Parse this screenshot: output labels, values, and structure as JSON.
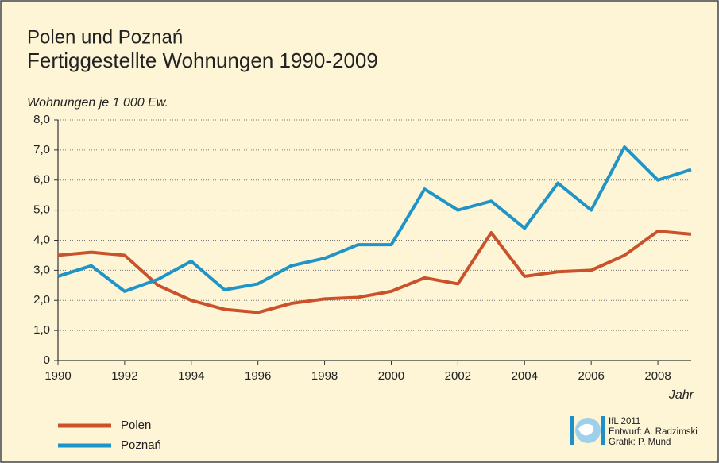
{
  "chart_data": {
    "type": "line",
    "subtitle": "Polen und Poznań",
    "title": "Fertiggestellte Wohnungen 1990-2009",
    "y_label": "Wohnungen je 1 000 Ew.",
    "x_label": "Jahr",
    "x": [
      1990,
      1991,
      1992,
      1993,
      1994,
      1995,
      1996,
      1997,
      1998,
      1999,
      2000,
      2001,
      2002,
      2003,
      2004,
      2005,
      2006,
      2007,
      2008,
      2009
    ],
    "series": [
      {
        "name": "Polen",
        "color": "#c9522b",
        "values": [
          3.5,
          3.6,
          3.5,
          2.5,
          2.0,
          1.7,
          1.6,
          1.9,
          2.05,
          2.1,
          2.3,
          2.75,
          2.55,
          4.25,
          2.8,
          2.95,
          3.0,
          3.5,
          4.3,
          4.2
        ]
      },
      {
        "name": "Poznań",
        "color": "#1f94c6",
        "values": [
          2.8,
          3.15,
          2.3,
          2.7,
          3.3,
          2.35,
          2.55,
          3.15,
          3.4,
          3.85,
          3.85,
          5.7,
          5.0,
          5.3,
          4.4,
          5.9,
          5.0,
          7.1,
          6.0,
          6.35
        ]
      }
    ],
    "xlim": [
      1990,
      2009
    ],
    "ylim": [
      0,
      8
    ],
    "xticks": [
      1990,
      1992,
      1994,
      1996,
      1998,
      2000,
      2002,
      2004,
      2006,
      2008
    ],
    "yticks": [
      0,
      {
        "value": 1,
        "label": "1,0"
      },
      {
        "value": 2,
        "label": "2,0"
      },
      {
        "value": 3,
        "label": "3,0"
      },
      {
        "value": 4,
        "label": "4,0"
      },
      {
        "value": 5,
        "label": "5,0"
      },
      {
        "value": 6,
        "label": "6,0"
      },
      {
        "value": 7,
        "label": "7,0"
      },
      {
        "value": 8,
        "label": "8,0"
      }
    ],
    "grid": true,
    "legend": "bottom-left"
  },
  "credits": [
    "IfL 2011",
    "Entwurf: A. Radzimski",
    "Grafik: P. Mund"
  ]
}
